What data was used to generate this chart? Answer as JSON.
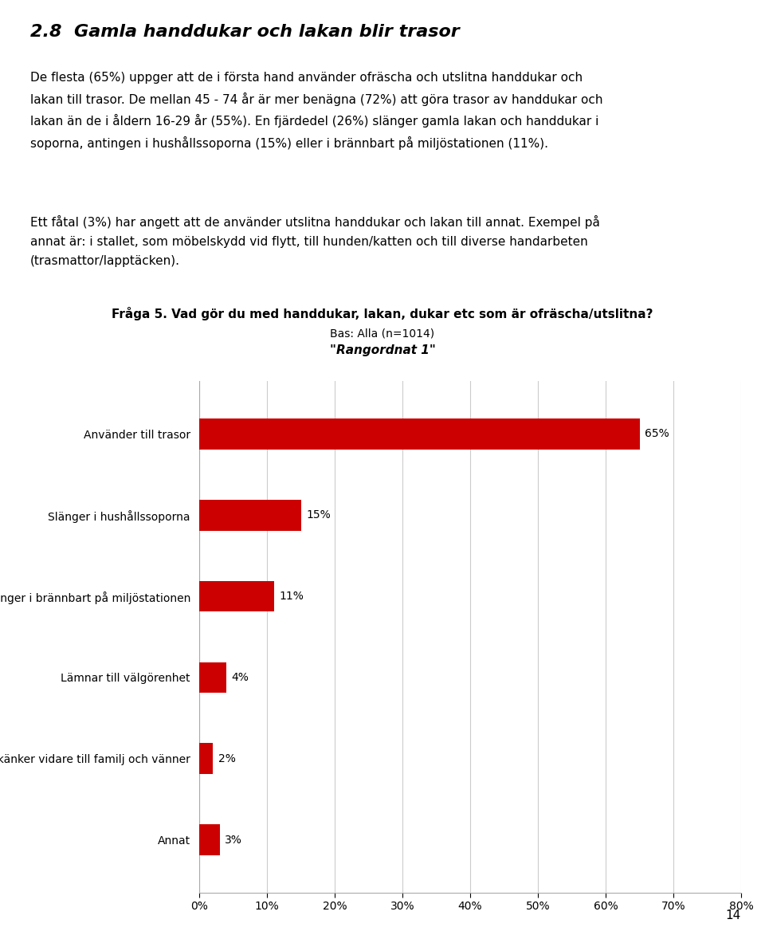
{
  "title_section": "2.8  Gamla handdukar och lakan blir trasor",
  "body_text_1": "De flesta (65%) uppger att de i första hand använder ofräscha och utslitna handdukar och\nlakan till trasor. De mellan 45 - 74 år är mer benägna (72%) att göra trasor av handdukar och\nlakan än de i åldern 16-29 år (55%). En fjärdedel (26%) slänger gamla lakan och handdukar i\nsoporna, antingen i hushållssoporna (15%) eller i brännbart på miljöstationen (11%).",
  "body_text_2": "Ett fåtal (3%) har angett att de använder utslitna handdukar och lakan till annat. Exempel på\nannat är: i stallet, som möbelskydd vid flytt, till hunden/katten och till diverse handarbeten\n(trasmattor/lapptäcken).",
  "chart_title": "Fråga 5. Vad gör du med handdukar, lakan, dukar etc som är ofräscha/utslitna?",
  "chart_subtitle1": "Bas: Alla (n=1014)",
  "chart_subtitle2": "\"Rangordnat 1\"",
  "categories": [
    "Använder till trasor",
    "Slänger i hushållssoporna",
    "Slänger i brännbart på miljöstationen",
    "Lämnar till välgörenhet",
    "Skänker vidare till familj och vänner",
    "Annat"
  ],
  "values": [
    65,
    15,
    11,
    4,
    2,
    3
  ],
  "bar_color": "#cc0000",
  "xlim": [
    0,
    80
  ],
  "xticks": [
    0,
    10,
    20,
    30,
    40,
    50,
    60,
    70,
    80
  ],
  "xtick_labels": [
    "0%",
    "10%",
    "20%",
    "30%",
    "40%",
    "50%",
    "60%",
    "70%",
    "80%"
  ],
  "page_number": "14",
  "background_color": "#ffffff"
}
